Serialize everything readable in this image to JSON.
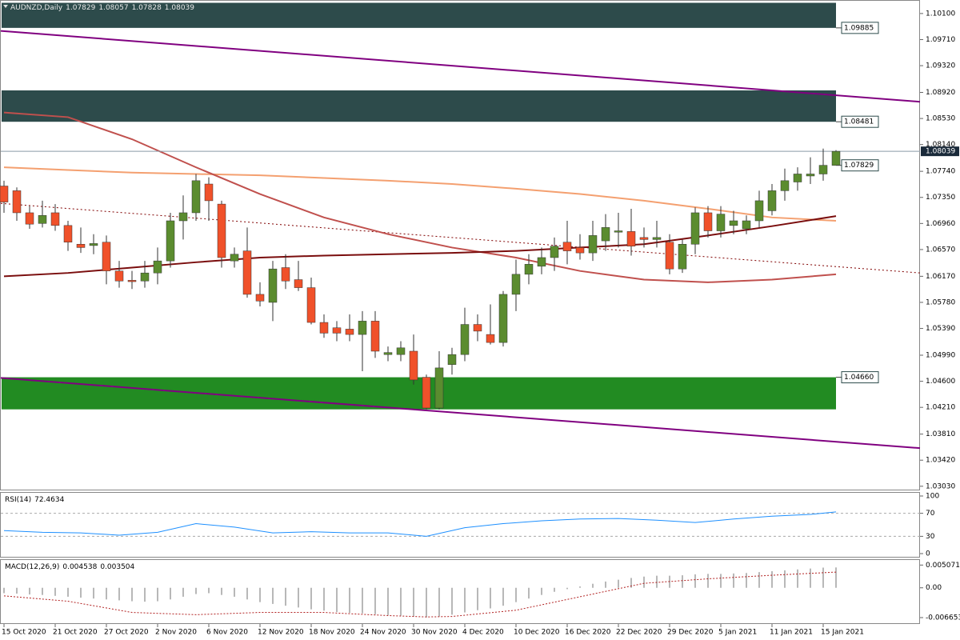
{
  "chart_data": [
    {
      "type": "candlestick",
      "title": "AUDNZD,Daily",
      "categories": [
        "15 Oct 2020",
        null,
        null,
        null,
        "21 Oct 2020",
        null,
        null,
        null,
        "27 Oct 2020",
        null,
        null,
        null,
        "2 Nov 2020",
        null,
        null,
        null,
        "6 Nov 2020",
        null,
        null,
        null,
        "12 Nov 2020",
        null,
        null,
        null,
        "18 Nov 2020",
        null,
        null,
        null,
        "24 Nov 2020",
        null,
        null,
        null,
        "30 Nov 2020",
        null,
        null,
        null,
        "4 Dec 2020",
        null,
        null,
        null,
        "10 Dec 2020",
        null,
        null,
        null,
        "16 Dec 2020",
        null,
        null,
        null,
        "22 Dec 2020",
        null,
        null,
        null,
        "29 Dec 2020",
        null,
        null,
        null,
        "5 Jan 2021",
        null,
        null,
        null,
        "11 Jan 2021",
        null,
        null,
        null,
        "15 Jan 2021",
        null
      ],
      "open": [
        1.0752,
        1.0745,
        1.0712,
        1.0696,
        1.0712,
        1.0693,
        1.0665,
        1.0663,
        1.0668,
        1.0625,
        1.0611,
        1.061,
        1.0622,
        1.064,
        1.07,
        1.0712,
        1.0755,
        1.0725,
        1.064,
        1.0655,
        1.059,
        1.0578,
        1.063,
        1.0612,
        1.06,
        1.0548,
        1.054,
        1.0538,
        1.053,
        1.055,
        1.05,
        1.05,
        1.0505,
        1.0466,
        1.042,
        1.0485,
        1.05,
        1.0545,
        1.053,
        1.0518,
        1.059,
        1.062,
        1.0632,
        1.0645,
        1.0668,
        1.066,
        1.0652,
        1.067,
        1.0683,
        1.0684,
        1.0675,
        1.0672,
        1.0668,
        1.0628,
        1.0665,
        1.0712,
        1.0685,
        1.0693,
        1.0688,
        1.07,
        1.0715,
        1.0745,
        1.0758,
        1.0767,
        1.077,
        1.07829
      ],
      "high": [
        1.076,
        1.075,
        1.0722,
        1.073,
        1.0725,
        1.07,
        1.069,
        1.068,
        1.0678,
        1.064,
        1.0625,
        1.064,
        1.066,
        1.0712,
        1.0738,
        1.077,
        1.0765,
        1.073,
        1.066,
        1.069,
        1.0608,
        1.064,
        1.065,
        1.064,
        1.0615,
        1.056,
        1.055,
        1.056,
        1.0565,
        1.0565,
        1.0512,
        1.052,
        1.053,
        1.047,
        1.0505,
        1.051,
        1.057,
        1.056,
        1.0575,
        1.0595,
        1.0642,
        1.065,
        1.066,
        1.0675,
        1.07,
        1.068,
        1.07,
        1.071,
        1.0712,
        1.0718,
        1.069,
        1.07,
        1.068,
        1.0672,
        1.072,
        1.0722,
        1.0722,
        1.0715,
        1.0708,
        1.0745,
        1.0755,
        1.0778,
        1.078,
        1.0795,
        1.0808,
        1.08057
      ],
      "low": [
        1.0712,
        1.07,
        1.0688,
        1.069,
        1.0685,
        1.0655,
        1.0652,
        1.065,
        1.0605,
        1.06,
        1.0598,
        1.06,
        1.0605,
        1.063,
        1.0672,
        1.07,
        1.07,
        1.063,
        1.063,
        1.0585,
        1.0572,
        1.055,
        1.0598,
        1.0595,
        1.0545,
        1.0525,
        1.052,
        1.052,
        1.0475,
        1.0495,
        1.049,
        1.049,
        1.0455,
        1.0418,
        1.0418,
        1.047,
        1.049,
        1.052,
        1.0515,
        1.0512,
        1.0565,
        1.0605,
        1.062,
        1.0625,
        1.0635,
        1.0642,
        1.064,
        1.0655,
        1.066,
        1.0648,
        1.066,
        1.066,
        1.062,
        1.0622,
        1.065,
        1.0675,
        1.0675,
        1.068,
        1.068,
        1.069,
        1.0708,
        1.073,
        1.0745,
        1.0755,
        1.076,
        1.07828
      ],
      "close": [
        1.0728,
        1.0712,
        1.0695,
        1.0708,
        1.0693,
        1.0668,
        1.066,
        1.0666,
        1.0625,
        1.061,
        1.0609,
        1.0622,
        1.064,
        1.07,
        1.0712,
        1.076,
        1.073,
        1.0645,
        1.065,
        1.059,
        1.058,
        1.0628,
        1.061,
        1.06,
        1.0548,
        1.0532,
        1.0532,
        1.053,
        1.055,
        1.0505,
        1.0503,
        1.051,
        1.0462,
        1.042,
        1.048,
        1.05,
        1.0545,
        1.0535,
        1.0518,
        1.059,
        1.062,
        1.0635,
        1.0645,
        1.0662,
        1.0655,
        1.0652,
        1.0678,
        1.069,
        1.0685,
        1.0662,
        1.0672,
        1.0675,
        1.0628,
        1.0665,
        1.0712,
        1.0685,
        1.071,
        1.07,
        1.07,
        1.073,
        1.0745,
        1.076,
        1.077,
        1.077,
        1.0783,
        1.08039
      ],
      "up_color": "#5b8c2f",
      "down_color": "#f0512a",
      "ylim": [
        1.0298,
        1.1029
      ],
      "yticks": [
        {
          "value": 1.101,
          "label": "1.10100"
        },
        {
          "value": 1.0971,
          "label": "1.09710"
        },
        {
          "value": 1.0932,
          "label": "1.09320"
        },
        {
          "value": 1.0892,
          "label": "1.08920"
        },
        {
          "value": 1.0853,
          "label": "1.08530"
        },
        {
          "value": 1.0814,
          "label": "1.08140"
        },
        {
          "value": 1.0774,
          "label": "1.07740"
        },
        {
          "value": 1.0735,
          "label": "1.07350"
        },
        {
          "value": 1.0696,
          "label": "1.06960"
        },
        {
          "value": 1.0657,
          "label": "1.06570"
        },
        {
          "value": 1.0617,
          "label": "1.06170"
        },
        {
          "value": 1.0578,
          "label": "1.05780"
        },
        {
          "value": 1.0539,
          "label": "1.05390"
        },
        {
          "value": 1.0499,
          "label": "1.04990"
        },
        {
          "value": 1.046,
          "label": "1.04600"
        },
        {
          "value": 1.0421,
          "label": "1.04210"
        },
        {
          "value": 1.0381,
          "label": "1.03810"
        },
        {
          "value": 1.0342,
          "label": "1.03420"
        },
        {
          "value": 1.0303,
          "label": "1.03030"
        }
      ],
      "zones": [
        {
          "range": [
            1.09885,
            1.1026
          ],
          "color": "#2d4b4b"
        },
        {
          "range": [
            1.08481,
            1.0895
          ],
          "color": "#2d4b4b"
        },
        {
          "range": [
            1.0418,
            1.0466
          ],
          "color": "#228b22"
        }
      ],
      "levels": [
        {
          "value": 1.09885
        },
        {
          "value": 1.08481
        },
        {
          "value": 1.07829
        },
        {
          "value": 1.0466,
          "label": "1.04660"
        }
      ],
      "moving_averages": [
        {
          "color": "#f4a070",
          "x": [
            0,
            5,
            10,
            15,
            20,
            25,
            30,
            35,
            40,
            45,
            50,
            55,
            60,
            65
          ],
          "values": [
            1.078,
            1.0776,
            1.0772,
            1.077,
            1.0768,
            1.0764,
            1.076,
            1.0755,
            1.0748,
            1.074,
            1.073,
            1.0718,
            1.0705,
            1.07
          ]
        },
        {
          "color": "#c0504d",
          "x": [
            0,
            5,
            10,
            15,
            20,
            25,
            30,
            35,
            40,
            45,
            50,
            55,
            60,
            65
          ],
          "values": [
            1.0862,
            1.0855,
            1.0822,
            1.078,
            1.074,
            1.0705,
            1.068,
            1.066,
            1.0645,
            1.0625,
            1.0612,
            1.0608,
            1.0612,
            1.062
          ]
        },
        {
          "color": "#7a0d0d",
          "x": [
            0,
            5,
            10,
            15,
            20,
            25,
            30,
            35,
            40,
            45,
            50,
            55,
            60,
            65
          ],
          "values": [
            1.0617,
            1.0622,
            1.063,
            1.0638,
            1.0645,
            1.0648,
            1.065,
            1.0652,
            1.0655,
            1.066,
            1.0665,
            1.0678,
            1.0692,
            1.0707
          ]
        }
      ],
      "trendlines": [
        {
          "color": "#800080",
          "values": [
            1.0984,
            1.0878
          ],
          "dashed": false
        },
        {
          "color": "#800080",
          "values": [
            1.0465,
            1.036
          ],
          "dashed": false
        },
        {
          "color": "#800000",
          "values": [
            1.0726,
            1.0622
          ],
          "dashed": true
        }
      ]
    },
    {
      "type": "line",
      "title": "RSI(14)",
      "series": [
        {
          "color": "#1e90ff",
          "x": [
            0,
            3,
            6,
            9,
            12,
            15,
            18,
            21,
            24,
            27,
            30,
            33,
            36,
            39,
            42,
            45,
            48,
            51,
            54,
            57,
            60,
            63,
            65
          ],
          "values": [
            40,
            37,
            36,
            32,
            37,
            52,
            46,
            36,
            38,
            36,
            36,
            30,
            45,
            52,
            57,
            60,
            61,
            58,
            54,
            60,
            65,
            68,
            72.4634
          ]
        }
      ],
      "ylim": [
        0,
        100
      ],
      "yticks": [
        100,
        70,
        30,
        0
      ]
    },
    {
      "type": "macd",
      "title": "MACD(12,26,9)",
      "histogram": {
        "color": "#b8b8b8",
        "values": [
          -0.0012,
          -0.0013,
          -0.0015,
          -0.0016,
          -0.0018,
          -0.002,
          -0.0022,
          -0.0024,
          -0.0026,
          -0.0028,
          -0.003,
          -0.0031,
          -0.003,
          -0.0026,
          -0.002,
          -0.0014,
          -0.0012,
          -0.0016,
          -0.002,
          -0.0026,
          -0.0032,
          -0.0036,
          -0.004,
          -0.0044,
          -0.0048,
          -0.0051,
          -0.0054,
          -0.0056,
          -0.0057,
          -0.0059,
          -0.0061,
          -0.0062,
          -0.0064,
          -0.0066,
          -0.0064,
          -0.006,
          -0.0055,
          -0.005,
          -0.0046,
          -0.004,
          -0.0032,
          -0.0024,
          -0.0016,
          -0.0009,
          -0.0003,
          0.0003,
          0.0009,
          0.0014,
          0.0018,
          0.0022,
          0.0025,
          0.0027,
          0.0027,
          0.0028,
          0.003,
          0.0031,
          0.0031,
          0.0032,
          0.0033,
          0.0035,
          0.0037,
          0.0039,
          0.0041,
          0.0043,
          0.0045,
          0.004538
        ]
      },
      "signal": {
        "color": "#b22222",
        "x": [
          0,
          5,
          10,
          15,
          20,
          25,
          30,
          33,
          35,
          40,
          45,
          50,
          55,
          60,
          65
        ],
        "values": [
          -0.0018,
          -0.003,
          -0.0055,
          -0.006,
          -0.0055,
          -0.0055,
          -0.0062,
          -0.0065,
          -0.0064,
          -0.005,
          -0.002,
          0.001,
          0.002,
          0.0028,
          0.003504
        ]
      },
      "ylim": [
        -0.0079,
        0.0062
      ],
      "yticks": [
        0.005071,
        {
          "value": 0,
          "label": "0.00"
        },
        -0.006653
      ]
    }
  ]
}
